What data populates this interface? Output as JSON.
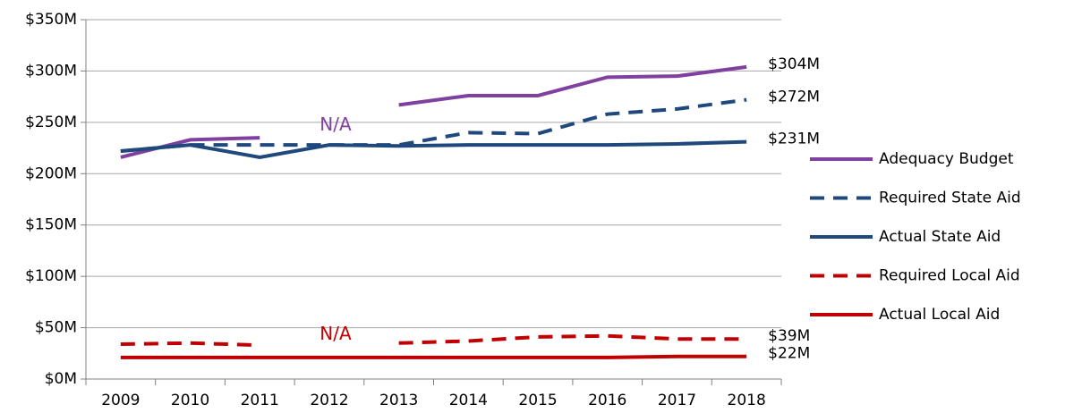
{
  "chart_data": {
    "type": "line",
    "categories": [
      "2009",
      "2010",
      "2011",
      "2012",
      "2013",
      "2014",
      "2015",
      "2016",
      "2017",
      "2018"
    ],
    "series": [
      {
        "name": "Adequacy Budget",
        "color": "#8040a0",
        "dash": false,
        "values": [
          216,
          233,
          235,
          null,
          267,
          276,
          276,
          294,
          295,
          304
        ],
        "value_labels": [
          null,
          null,
          null,
          null,
          null,
          null,
          null,
          null,
          null,
          "$304M"
        ]
      },
      {
        "name": "Required State Aid",
        "color": "#1f497d",
        "dash": true,
        "values": [
          222,
          228,
          228,
          228,
          228,
          240,
          239,
          258,
          263,
          272
        ],
        "value_labels": [
          null,
          null,
          null,
          null,
          null,
          null,
          null,
          null,
          null,
          "$272M"
        ]
      },
      {
        "name": "Actual State Aid",
        "color": "#1f497d",
        "dash": false,
        "values": [
          222,
          228,
          216,
          228,
          227,
          228,
          228,
          228,
          229,
          231
        ],
        "value_labels": [
          null,
          null,
          null,
          null,
          null,
          null,
          null,
          null,
          null,
          "$231M"
        ]
      },
      {
        "name": "Required Local Aid",
        "color": "#c00000",
        "dash": true,
        "values": [
          34,
          35,
          33,
          null,
          35,
          37,
          41,
          42,
          39,
          39
        ],
        "value_labels": [
          null,
          null,
          null,
          null,
          null,
          null,
          null,
          null,
          null,
          "$39M"
        ]
      },
      {
        "name": "Actual Local Aid",
        "color": "#c00000",
        "dash": false,
        "values": [
          21,
          21,
          21,
          21,
          21,
          21,
          21,
          21,
          22,
          22
        ],
        "value_labels": [
          null,
          null,
          null,
          null,
          null,
          null,
          null,
          null,
          null,
          "$22M"
        ]
      }
    ],
    "annotations": [
      {
        "text": "N/A",
        "x": "2012",
        "y": 247,
        "color": "#8040a0"
      },
      {
        "text": "N/A",
        "x": "2012",
        "y": 43,
        "color": "#c00000"
      }
    ],
    "ylim": [
      0,
      350
    ],
    "yticks": [
      {
        "value": 0,
        "label": "$0M"
      },
      {
        "value": 50,
        "label": "$50M"
      },
      {
        "value": 100,
        "label": "$100M"
      },
      {
        "value": 150,
        "label": "$150M"
      },
      {
        "value": 200,
        "label": "$200M"
      },
      {
        "value": 250,
        "label": "$250M"
      },
      {
        "value": 300,
        "label": "$300M"
      },
      {
        "value": 350,
        "label": "$350M"
      }
    ],
    "grid": true,
    "legend": "right"
  }
}
